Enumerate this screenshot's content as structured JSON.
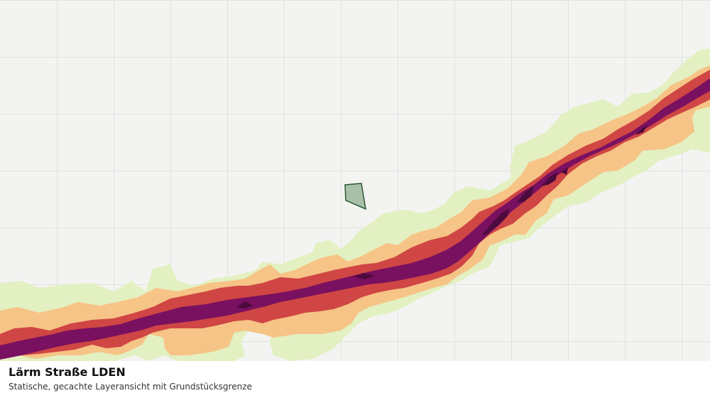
{
  "layer": {
    "title": "Lärm Straße LDEN",
    "subtitle": "Statische, gecachte Layeransicht mit Grundstücksgrenze"
  },
  "colors": {
    "background": "#f3f4f2",
    "grid": "#dfe2df",
    "noise_band_1": "#e3f0c2",
    "noise_band_2": "#f6c486",
    "noise_band_3": "#cf4644",
    "noise_band_4": "#7a1060",
    "noise_band_5": "#4c0a3d",
    "parcel_fill": "#a9c1a9",
    "parcel_stroke": "#2a5a34"
  }
}
